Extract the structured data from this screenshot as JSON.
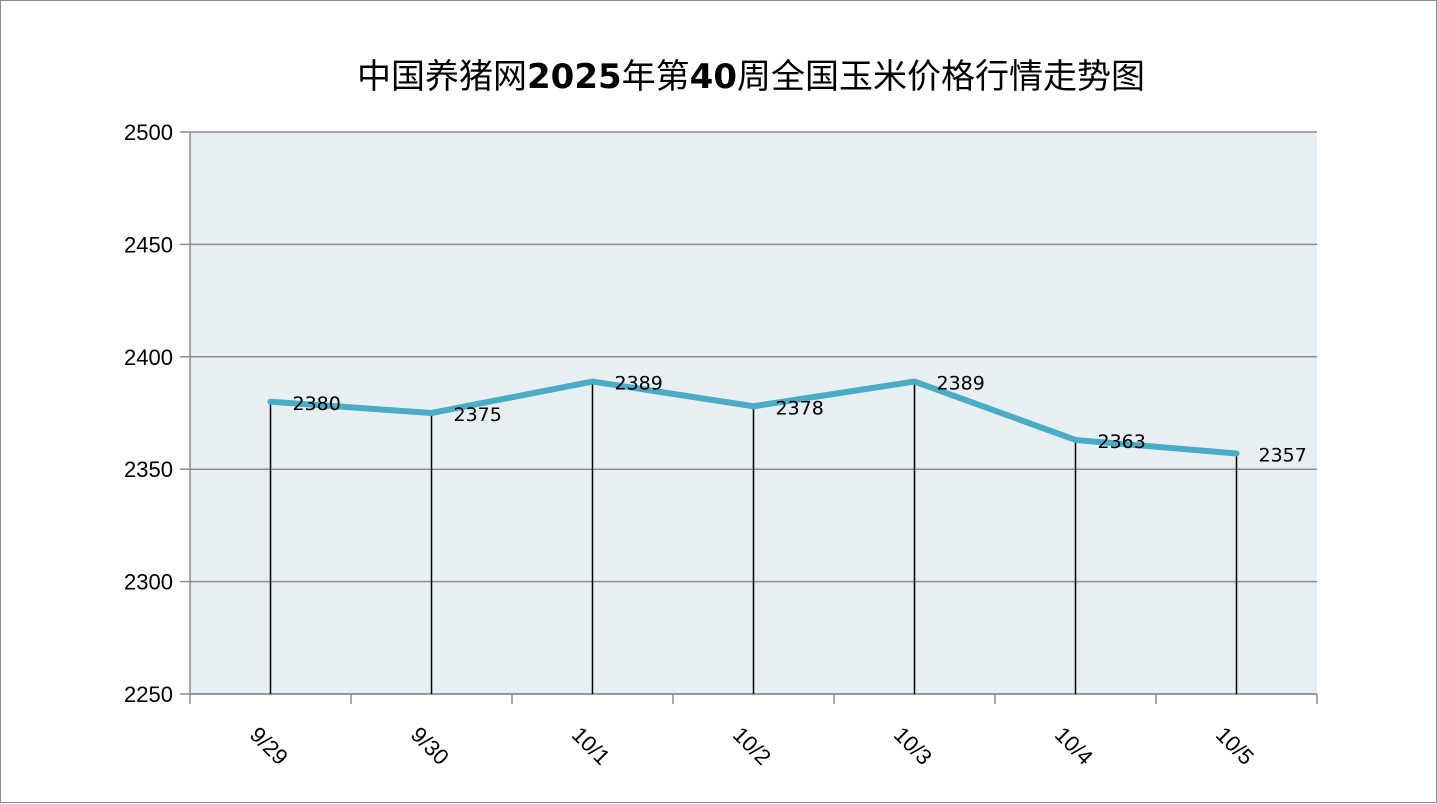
{
  "title": {
    "p1": "中国养猪网",
    "p2": "2025",
    "p3": "年第",
    "p4": "40",
    "p5": "周全国玉米价格行情走势图"
  },
  "colors": {
    "plot_bg": "#e8eff3",
    "line": "#4bacc6",
    "grid": "#8c8c8c",
    "drop_line": "#000000"
  },
  "chart_data": {
    "type": "line",
    "title": "中国养猪网2025年第40周全国玉米价格行情走势图",
    "categories": [
      "9/29",
      "9/30",
      "10/1",
      "10/2",
      "10/3",
      "10/4",
      "10/5"
    ],
    "series": [
      {
        "values": [
          2380,
          2375,
          2389,
          2378,
          2389,
          2363,
          2357
        ]
      }
    ],
    "data_labels": [
      "2380",
      "2375",
      "2389",
      "2378",
      "2389",
      "2363",
      "2357"
    ],
    "ylim": [
      2250,
      2500
    ],
    "yticks": [
      2250,
      2300,
      2350,
      2400,
      2450,
      2500
    ],
    "grid": true,
    "drop_lines": true,
    "legend": "none"
  }
}
